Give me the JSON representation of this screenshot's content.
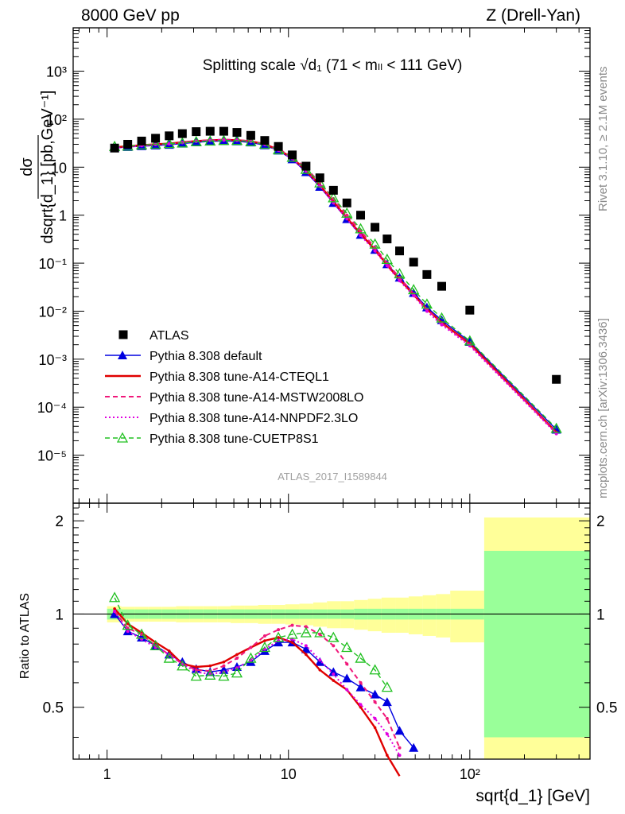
{
  "header": {
    "left": "8000 GeV pp",
    "right": "Z (Drell-Yan)"
  },
  "side_labels": {
    "rivet": "Rivet 3.1.10, ≥ 2.1M events",
    "mcplots": "mcplots.cern.ch [arXiv:1306.3436]"
  },
  "chart_data": {
    "type": "scatter",
    "title": "Splitting scale √d₁ (71 < mₗₗ < 111 GeV)",
    "analysis_label": "ATLAS_2017_I1589844",
    "xlabel": "sqrt{d_1} [GeV]",
    "ylabel": "dσ/dsqrt{d_1} [pb,GeV⁻¹]",
    "ratio_ylabel": "Ratio to ATLAS",
    "xscale": "log",
    "yscale": "log",
    "xlim": [
      0.65,
      460
    ],
    "ylim": [
      1e-06,
      8000
    ],
    "ratio_ylim": [
      0.34,
      2.28
    ],
    "legend_position": "lower-left",
    "grid": false,
    "x_tick_labels": [
      "1",
      "10",
      "10²"
    ],
    "y_tick_labels": [
      "10⁻⁵",
      "10⁻⁴",
      "10⁻³",
      "10⁻²",
      "10⁻¹",
      "1",
      "10",
      "10²",
      "10³"
    ],
    "ratio_tick_labels": [
      "0.5",
      "1",
      "2"
    ],
    "series": [
      {
        "name": "ATLAS",
        "style": "data",
        "color": "#000000",
        "x": [
          1.1,
          1.3,
          1.55,
          1.85,
          2.2,
          2.6,
          3.1,
          3.7,
          4.4,
          5.2,
          6.2,
          7.4,
          8.8,
          10.5,
          12.5,
          14.9,
          17.7,
          21,
          25,
          30,
          35,
          41,
          49,
          58,
          70,
          100,
          300
        ],
        "y": [
          25,
          30,
          35,
          40,
          45,
          50,
          55,
          56,
          56,
          53,
          46,
          36,
          27,
          18,
          10.5,
          6,
          3.3,
          1.8,
          1.0,
          0.56,
          0.32,
          0.18,
          0.105,
          0.058,
          0.033,
          0.0105,
          0.00038
        ]
      },
      {
        "name": "Pythia 8.308 default",
        "style": "blue-triangle",
        "color": "#0000e0",
        "x": [
          1.1,
          1.3,
          1.55,
          1.85,
          2.2,
          2.6,
          3.1,
          3.7,
          4.4,
          5.2,
          6.2,
          7.4,
          8.8,
          10.5,
          12.5,
          14.9,
          17.7,
          21,
          25,
          30,
          35,
          41,
          49,
          58,
          70,
          100,
          300
        ],
        "y": [
          25,
          26.4,
          27.4,
          28.3,
          29.3,
          31,
          33,
          34.5,
          35,
          34.6,
          32.8,
          28.6,
          22.2,
          14.6,
          7.9,
          3.9,
          1.8,
          0.83,
          0.39,
          0.19,
          0.095,
          0.05,
          0.024,
          0.012,
          0.0065,
          0.0023,
          3.4e-05
        ]
      },
      {
        "name": "Pythia 8.308 tune-A14-CTEQL1",
        "style": "red-solid",
        "color": "#e00000",
        "x": [
          1.1,
          1.3,
          1.55,
          1.85,
          2.2,
          2.6,
          3.1,
          3.7,
          4.4,
          5.2,
          6.2,
          7.4,
          8.8,
          10.5,
          12.5,
          14.9,
          17.7,
          21,
          25,
          30,
          35,
          41,
          49,
          58,
          70,
          100,
          300
        ],
        "y": [
          26,
          27.3,
          28.6,
          30,
          31,
          33,
          35,
          36.4,
          37,
          36.6,
          34.7,
          30.2,
          23.1,
          15.6,
          8.5,
          4.2,
          1.9,
          0.88,
          0.41,
          0.19,
          0.092,
          0.046,
          0.022,
          0.011,
          0.0058,
          0.0021,
          3e-05
        ]
      },
      {
        "name": "Pythia 8.308 tune-A14-MSTW2008LO",
        "style": "magenta-dashed",
        "color": "#f0187a",
        "x": [
          1.1,
          1.3,
          1.55,
          1.85,
          2.2,
          2.6,
          3.1,
          3.7,
          4.4,
          5.2,
          6.2,
          7.4,
          8.8,
          10.5,
          12.5,
          14.9,
          17.7,
          21,
          25,
          30,
          35,
          41,
          49,
          58,
          70,
          100,
          300
        ],
        "y": [
          25.5,
          27,
          28.5,
          29.5,
          30.5,
          32.5,
          35,
          36.5,
          37.5,
          37,
          35,
          30.5,
          24,
          16.5,
          9.5,
          4.8,
          2.2,
          1.0,
          0.47,
          0.21,
          0.1,
          0.05,
          0.023,
          0.011,
          0.0055,
          0.002,
          2.9e-05
        ]
      },
      {
        "name": "Pythia 8.308 tune-A14-NNPDF2.3LO",
        "style": "magenta-dotted",
        "color": "#e000e0",
        "x": [
          1.1,
          1.3,
          1.55,
          1.85,
          2.2,
          2.6,
          3.1,
          3.7,
          4.4,
          5.2,
          6.2,
          7.4,
          8.8,
          10.5,
          12.5,
          14.9,
          17.7,
          21,
          25,
          30,
          35,
          41,
          49,
          58,
          70,
          100,
          300
        ],
        "y": [
          25.5,
          26.5,
          28,
          29.5,
          30.5,
          32.5,
          34.5,
          36,
          36.5,
          36,
          34,
          29.5,
          22.5,
          15,
          8.3,
          4.0,
          1.8,
          0.84,
          0.38,
          0.18,
          0.088,
          0.043,
          0.021,
          0.01,
          0.0052,
          0.0019,
          2.8e-05
        ]
      },
      {
        "name": "Pythia 8.308 tune-CUETP8S1",
        "style": "green-open-triangle",
        "color": "#20c020",
        "x": [
          1.1,
          1.3,
          1.55,
          1.85,
          2.2,
          2.6,
          3.1,
          3.7,
          4.4,
          5.2,
          6.2,
          7.4,
          8.8,
          10.5,
          12.5,
          14.9,
          17.7,
          21,
          25,
          30,
          35,
          41,
          49,
          58,
          70,
          100,
          300
        ],
        "y": [
          27,
          27.5,
          29,
          30,
          31,
          32,
          34,
          35,
          36,
          36,
          34,
          30,
          23,
          16,
          9,
          4.7,
          2.3,
          1.1,
          0.52,
          0.25,
          0.12,
          0.06,
          0.028,
          0.014,
          0.0072,
          0.0024,
          3.6e-05
        ]
      }
    ],
    "ratio_series": [
      {
        "name": "Pythia 8.308 default",
        "x": [
          1.1,
          1.3,
          1.55,
          1.85,
          2.2,
          2.6,
          3.1,
          3.7,
          4.4,
          5.2,
          6.2,
          7.4,
          8.8,
          10.5,
          12.5,
          14.9,
          17.7,
          21,
          25,
          30,
          35,
          41,
          49
        ],
        "y": [
          1.0,
          0.88,
          0.84,
          0.79,
          0.74,
          0.7,
          0.665,
          0.65,
          0.66,
          0.675,
          0.7,
          0.76,
          0.81,
          0.81,
          0.77,
          0.7,
          0.65,
          0.62,
          0.58,
          0.55,
          0.52,
          0.42,
          0.37
        ]
      },
      {
        "name": "Pythia 8.308 tune-A14-CTEQL1",
        "x": [
          1.1,
          1.3,
          1.55,
          1.85,
          2.2,
          2.6,
          3.1,
          3.7,
          4.4,
          5.2,
          6.2,
          7.4,
          8.8,
          10.5,
          12.5,
          14.9,
          17.7,
          21,
          25,
          30,
          35,
          41
        ],
        "y": [
          1.04,
          0.93,
          0.87,
          0.81,
          0.76,
          0.69,
          0.675,
          0.68,
          0.7,
          0.74,
          0.78,
          0.82,
          0.84,
          0.81,
          0.74,
          0.66,
          0.61,
          0.57,
          0.5,
          0.43,
          0.35,
          0.3
        ]
      },
      {
        "name": "Pythia 8.308 tune-A14-MSTW2008LO",
        "x": [
          1.1,
          1.3,
          1.55,
          1.85,
          2.2,
          2.6,
          3.1,
          3.7,
          4.4,
          5.2,
          6.2,
          7.4,
          8.8,
          10.5,
          12.5,
          14.9,
          17.7,
          21,
          25,
          30,
          35,
          41
        ],
        "y": [
          1.02,
          0.9,
          0.86,
          0.79,
          0.74,
          0.69,
          0.66,
          0.655,
          0.68,
          0.72,
          0.78,
          0.85,
          0.89,
          0.92,
          0.91,
          0.86,
          0.79,
          0.69,
          0.6,
          0.52,
          0.46,
          0.37
        ]
      },
      {
        "name": "Pythia 8.308 tune-A14-NNPDF2.3LO",
        "x": [
          1.1,
          1.3,
          1.55,
          1.85,
          2.2,
          2.6,
          3.1,
          3.7,
          4.4,
          5.2,
          6.2,
          7.4,
          8.8,
          10.5,
          12.5,
          14.9,
          17.7,
          21,
          25,
          30,
          35,
          41
        ],
        "y": [
          1.02,
          0.88,
          0.83,
          0.78,
          0.74,
          0.69,
          0.65,
          0.64,
          0.65,
          0.67,
          0.71,
          0.77,
          0.82,
          0.83,
          0.79,
          0.71,
          0.64,
          0.57,
          0.51,
          0.46,
          0.41,
          0.35
        ]
      },
      {
        "name": "Pythia 8.308 tune-CUETP8S1",
        "x": [
          1.1,
          1.3,
          1.55,
          1.85,
          2.2,
          2.6,
          3.1,
          3.7,
          4.4,
          5.2,
          6.2,
          7.4,
          8.8,
          10.5,
          12.5,
          14.9,
          17.7,
          21,
          25,
          30,
          35
        ],
        "y": [
          1.13,
          0.92,
          0.86,
          0.79,
          0.72,
          0.68,
          0.63,
          0.635,
          0.63,
          0.645,
          0.72,
          0.78,
          0.84,
          0.86,
          0.87,
          0.87,
          0.84,
          0.78,
          0.72,
          0.66,
          0.58
        ]
      }
    ],
    "ratio_bands": {
      "edges": [
        1.0,
        1.2,
        1.42,
        1.69,
        2.0,
        2.4,
        2.85,
        3.4,
        4.05,
        4.8,
        5.7,
        6.8,
        8.1,
        9.6,
        11.5,
        13.7,
        16.3,
        19.4,
        23,
        27.4,
        32.6,
        38.8,
        46,
        55,
        65,
        78,
        120,
        460
      ],
      "green": [
        0.04,
        0.035,
        0.035,
        0.035,
        0.035,
        0.035,
        0.035,
        0.035,
        0.035,
        0.035,
        0.035,
        0.035,
        0.035,
        0.035,
        0.035,
        0.035,
        0.035,
        0.035,
        0.04,
        0.04,
        0.04,
        0.04,
        0.04,
        0.04,
        0.04,
        0.04,
        0.6
      ],
      "yellow": [
        0.06,
        0.055,
        0.055,
        0.055,
        0.055,
        0.06,
        0.06,
        0.06,
        0.06,
        0.065,
        0.065,
        0.07,
        0.07,
        0.075,
        0.08,
        0.09,
        0.1,
        0.1,
        0.11,
        0.12,
        0.13,
        0.13,
        0.14,
        0.15,
        0.16,
        0.19,
        1.05
      ]
    }
  }
}
